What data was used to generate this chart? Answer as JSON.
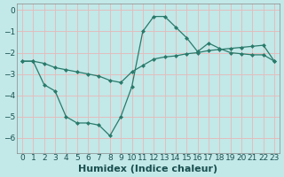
{
  "xlabel": "Humidex (Indice chaleur)",
  "bg_color": "#c2e8e8",
  "grid_color": "#e8b8b8",
  "line_color": "#2a7a6a",
  "xlim": [
    -0.5,
    23.5
  ],
  "ylim": [
    -6.7,
    0.3
  ],
  "yticks": [
    0,
    -1,
    -2,
    -3,
    -4,
    -5,
    -6
  ],
  "xticks": [
    0,
    1,
    2,
    3,
    4,
    5,
    6,
    7,
    8,
    9,
    10,
    11,
    12,
    13,
    14,
    15,
    16,
    17,
    18,
    19,
    20,
    21,
    22,
    23
  ],
  "line1_x": [
    0,
    1,
    2,
    3,
    4,
    5,
    6,
    7,
    8,
    9,
    10,
    11,
    12,
    13,
    14,
    15,
    16,
    17,
    18,
    19,
    20,
    21,
    22,
    23
  ],
  "line1_y": [
    -2.4,
    -2.4,
    -3.5,
    -3.8,
    -5.0,
    -5.3,
    -5.3,
    -5.4,
    -5.9,
    -5.0,
    -3.6,
    -1.0,
    -0.3,
    -0.3,
    -0.8,
    -1.3,
    -1.95,
    -1.55,
    -1.8,
    -2.0,
    -2.05,
    -2.1,
    -2.1,
    -2.4
  ],
  "line2_x": [
    0,
    1,
    2,
    3,
    4,
    5,
    6,
    7,
    8,
    9,
    10,
    11,
    12,
    13,
    14,
    15,
    16,
    17,
    18,
    19,
    20,
    21,
    22,
    23
  ],
  "line2_y": [
    -2.4,
    -2.4,
    -2.5,
    -2.7,
    -2.8,
    -2.9,
    -3.0,
    -3.1,
    -3.3,
    -3.4,
    -2.9,
    -2.6,
    -2.3,
    -2.2,
    -2.15,
    -2.05,
    -2.0,
    -1.9,
    -1.85,
    -1.8,
    -1.75,
    -1.7,
    -1.65,
    -2.4
  ],
  "font_color": "#1a5050",
  "tick_fontsize": 6.5,
  "label_fontsize": 8
}
